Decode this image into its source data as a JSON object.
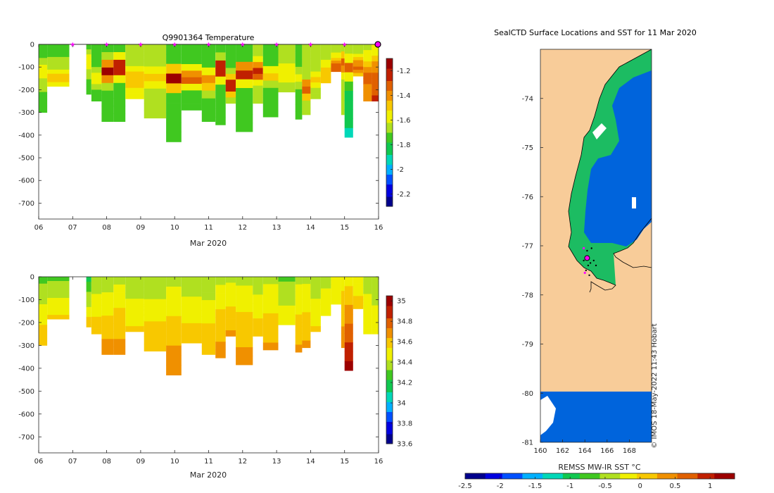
{
  "chart_data": [
    {
      "type": "heatmap",
      "title": "Q9901364  Temperature",
      "xlabel": "Mar 2020",
      "x_ticks": [
        "06",
        "07",
        "08",
        "09",
        "10",
        "11",
        "12",
        "13",
        "14",
        "15",
        "16"
      ],
      "xlim": [
        6,
        16
      ],
      "ylim": [
        -770,
        0
      ],
      "y_ticks": [
        0,
        -100,
        -200,
        -300,
        -400,
        -500,
        -600,
        -700
      ],
      "colorbar": {
        "ticks": [
          -1.2,
          -1.4,
          -1.6,
          -1.8,
          -2,
          -2.2
        ],
        "range": [
          -2.3,
          -1.1
        ]
      },
      "profile_markers_day": [
        7,
        8,
        9,
        10,
        11,
        12,
        13,
        14,
        15
      ],
      "last_profile_day": 16,
      "profiles": [
        {
          "start": 6.0,
          "end": 6.25,
          "depth": 300,
          "surface": -1.75,
          "bottom": -1.7,
          "warm_layer_depth": 130,
          "warm_layer_value": -1.55
        },
        {
          "start": 6.25,
          "end": 6.9,
          "depth": 185,
          "surface": -1.75,
          "bottom": -1.6,
          "warm_layer_depth": 150,
          "warm_layer_value": -1.5
        },
        {
          "start": 7.4,
          "end": 7.55,
          "depth": 220,
          "surface": -1.75,
          "bottom": -1.7,
          "warm_layer_depth": 80,
          "warm_layer_value": -1.55
        },
        {
          "start": 7.55,
          "end": 7.85,
          "depth": 250,
          "surface": -1.75,
          "bottom": -1.75,
          "warm_layer_depth": 150,
          "warm_layer_value": -1.55
        },
        {
          "start": 7.85,
          "end": 8.2,
          "depth": 340,
          "surface": -1.75,
          "bottom": -1.75,
          "warm_layer_depth": 120,
          "warm_layer_value": -1.15
        },
        {
          "start": 8.2,
          "end": 8.55,
          "depth": 340,
          "surface": -1.75,
          "bottom": -1.75,
          "warm_layer_depth": 100,
          "warm_layer_value": -1.15
        },
        {
          "start": 8.55,
          "end": 9.1,
          "depth": 240,
          "surface": -1.7,
          "bottom": -1.6,
          "warm_layer_depth": 150,
          "warm_layer_value": -1.45
        },
        {
          "start": 9.1,
          "end": 9.75,
          "depth": 325,
          "surface": -1.7,
          "bottom": -1.7,
          "warm_layer_depth": 140,
          "warm_layer_value": -1.5
        },
        {
          "start": 9.75,
          "end": 10.2,
          "depth": 430,
          "surface": -1.75,
          "bottom": -1.75,
          "warm_layer_depth": 150,
          "warm_layer_value": -1.15
        },
        {
          "start": 10.2,
          "end": 10.8,
          "depth": 290,
          "surface": -1.75,
          "bottom": -1.75,
          "warm_layer_depth": 150,
          "warm_layer_value": -1.3
        },
        {
          "start": 10.8,
          "end": 11.2,
          "depth": 340,
          "surface": -1.75,
          "bottom": -1.75,
          "warm_layer_depth": 160,
          "warm_layer_value": -1.4
        },
        {
          "start": 11.2,
          "end": 11.5,
          "depth": 355,
          "surface": -1.75,
          "bottom": -1.75,
          "warm_layer_depth": 110,
          "warm_layer_value": -1.15
        },
        {
          "start": 11.5,
          "end": 11.8,
          "depth": 260,
          "surface": -1.75,
          "bottom": -1.75,
          "warm_layer_depth": 180,
          "warm_layer_value": -1.2
        },
        {
          "start": 11.8,
          "end": 12.3,
          "depth": 385,
          "surface": -1.75,
          "bottom": -1.75,
          "warm_layer_depth": 130,
          "warm_layer_value": -1.2
        },
        {
          "start": 12.3,
          "end": 12.6,
          "depth": 260,
          "surface": -1.7,
          "bottom": -1.7,
          "warm_layer_depth": 120,
          "warm_layer_value": -1.25
        },
        {
          "start": 12.6,
          "end": 13.05,
          "depth": 320,
          "surface": -1.75,
          "bottom": -1.75,
          "warm_layer_depth": 140,
          "warm_layer_value": -1.5
        },
        {
          "start": 13.05,
          "end": 13.55,
          "depth": 210,
          "surface": -1.7,
          "bottom": -1.65,
          "warm_layer_depth": 120,
          "warm_layer_value": -1.55
        },
        {
          "start": 13.55,
          "end": 13.75,
          "depth": 330,
          "surface": -1.75,
          "bottom": -1.75,
          "warm_layer_depth": 150,
          "warm_layer_value": -1.6
        },
        {
          "start": 13.75,
          "end": 14.0,
          "depth": 310,
          "surface": -1.7,
          "bottom": -1.7,
          "warm_layer_depth": 200,
          "warm_layer_value": -1.3
        },
        {
          "start": 14.0,
          "end": 14.3,
          "depth": 240,
          "surface": -1.7,
          "bottom": -1.7,
          "warm_layer_depth": 150,
          "warm_layer_value": -1.5
        },
        {
          "start": 14.3,
          "end": 14.6,
          "depth": 170,
          "surface": -1.65,
          "bottom": -1.6,
          "warm_layer_depth": 130,
          "warm_layer_value": -1.45
        },
        {
          "start": 14.6,
          "end": 14.9,
          "depth": 120,
          "surface": -1.7,
          "bottom": -1.6,
          "warm_layer_depth": 100,
          "warm_layer_value": -1.3
        },
        {
          "start": 14.9,
          "end": 15.0,
          "depth": 310,
          "surface": -1.65,
          "bottom": -1.7,
          "warm_layer_depth": 90,
          "warm_layer_value": -1.3
        },
        {
          "start": 15.0,
          "end": 15.25,
          "depth": 410,
          "surface": -1.7,
          "bottom": -1.9,
          "warm_layer_depth": 100,
          "warm_layer_value": -1.35
        },
        {
          "start": 15.25,
          "end": 15.55,
          "depth": 140,
          "surface": -1.7,
          "bottom": -1.7,
          "warm_layer_depth": 100,
          "warm_layer_value": -1.35
        },
        {
          "start": 15.55,
          "end": 15.8,
          "depth": 250,
          "surface": -1.65,
          "bottom": -1.35,
          "warm_layer_depth": 140,
          "warm_layer_value": -1.3
        },
        {
          "start": 15.8,
          "end": 16.0,
          "depth": 250,
          "surface": -1.6,
          "bottom": -1.15,
          "warm_layer_depth": 200,
          "warm_layer_value": -1.3
        }
      ]
    },
    {
      "type": "heatmap",
      "title": "",
      "xlabel": "Mar 2020",
      "x_ticks": [
        "06",
        "07",
        "08",
        "09",
        "10",
        "11",
        "12",
        "13",
        "14",
        "15",
        "16"
      ],
      "xlim": [
        6,
        16
      ],
      "ylim": [
        -770,
        0
      ],
      "y_ticks": [
        0,
        -100,
        -200,
        -300,
        -400,
        -500,
        -600,
        -700
      ],
      "colorbar": {
        "ticks": [
          35,
          34.8,
          34.6,
          34.4,
          34.2,
          34,
          33.8,
          33.6
        ],
        "range": [
          33.6,
          35.05
        ]
      },
      "profiles": [
        {
          "start": 6.0,
          "end": 6.25,
          "depth": 300,
          "surface": 34.3,
          "bottom": 34.65
        },
        {
          "start": 6.25,
          "end": 6.9,
          "depth": 185,
          "surface": 34.3,
          "bottom": 34.55
        },
        {
          "start": 7.4,
          "end": 7.55,
          "depth": 220,
          "surface": 34.2,
          "bottom": 34.6
        },
        {
          "start": 7.55,
          "end": 7.85,
          "depth": 250,
          "surface": 34.35,
          "bottom": 34.6
        },
        {
          "start": 7.85,
          "end": 8.2,
          "depth": 340,
          "surface": 34.35,
          "bottom": 34.7
        },
        {
          "start": 8.2,
          "end": 8.55,
          "depth": 340,
          "surface": 34.4,
          "bottom": 34.7
        },
        {
          "start": 8.55,
          "end": 9.1,
          "depth": 240,
          "surface": 34.35,
          "bottom": 34.55
        },
        {
          "start": 9.1,
          "end": 9.75,
          "depth": 325,
          "surface": 34.35,
          "bottom": 34.65
        },
        {
          "start": 9.75,
          "end": 10.2,
          "depth": 430,
          "surface": 34.4,
          "bottom": 34.75
        },
        {
          "start": 10.2,
          "end": 10.8,
          "depth": 290,
          "surface": 34.35,
          "bottom": 34.6
        },
        {
          "start": 10.8,
          "end": 11.2,
          "depth": 340,
          "surface": 34.35,
          "bottom": 34.65
        },
        {
          "start": 11.2,
          "end": 11.5,
          "depth": 355,
          "surface": 34.4,
          "bottom": 34.7
        },
        {
          "start": 11.5,
          "end": 11.8,
          "depth": 260,
          "surface": 34.4,
          "bottom": 34.65
        },
        {
          "start": 11.8,
          "end": 12.3,
          "depth": 385,
          "surface": 34.4,
          "bottom": 34.7
        },
        {
          "start": 12.3,
          "end": 12.6,
          "depth": 260,
          "surface": 34.35,
          "bottom": 34.6
        },
        {
          "start": 12.6,
          "end": 13.05,
          "depth": 320,
          "surface": 34.4,
          "bottom": 34.65
        },
        {
          "start": 13.05,
          "end": 13.55,
          "depth": 210,
          "surface": 34.3,
          "bottom": 34.5
        },
        {
          "start": 13.55,
          "end": 13.75,
          "depth": 330,
          "surface": 34.4,
          "bottom": 34.65
        },
        {
          "start": 13.75,
          "end": 14.0,
          "depth": 310,
          "surface": 34.4,
          "bottom": 34.65
        },
        {
          "start": 14.0,
          "end": 14.3,
          "depth": 240,
          "surface": 34.35,
          "bottom": 34.55
        },
        {
          "start": 14.3,
          "end": 14.6,
          "depth": 170,
          "surface": 34.4,
          "bottom": 34.5
        },
        {
          "start": 14.6,
          "end": 14.9,
          "depth": 120,
          "surface": 34.45,
          "bottom": 34.5
        },
        {
          "start": 14.9,
          "end": 15.0,
          "depth": 310,
          "surface": 34.5,
          "bottom": 34.7
        },
        {
          "start": 15.0,
          "end": 15.25,
          "depth": 410,
          "surface": 34.5,
          "bottom": 35.0
        },
        {
          "start": 15.25,
          "end": 15.55,
          "depth": 140,
          "surface": 34.5,
          "bottom": 34.55
        },
        {
          "start": 15.55,
          "end": 15.8,
          "depth": 250,
          "surface": 34.4,
          "bottom": 34.5
        },
        {
          "start": 15.8,
          "end": 16.0,
          "depth": 250,
          "surface": 34.35,
          "bottom": 34.5
        }
      ]
    },
    {
      "type": "heatmap",
      "title": "SealCTD Surface Locations and SST for 11 Mar 2020",
      "xlabel": "",
      "ylabel": "",
      "x_ticks": [
        "160",
        "162",
        "164",
        "166",
        "168"
      ],
      "y_ticks": [
        "-74",
        "-75",
        "-76",
        "-77",
        "-78",
        "-79",
        "-80",
        "-81"
      ],
      "xlim": [
        160,
        170
      ],
      "ylim": [
        -81,
        -73
      ],
      "colorbar_label": "REMSS MW-IR SST °C",
      "colorbar": {
        "ticks": [
          "-2.5",
          "-2",
          "-1.5",
          "-1",
          "-0.5",
          "0",
          "0.5",
          "1"
        ],
        "range": [
          -2.5,
          1.35
        ]
      },
      "land_color": "#f8cc99",
      "sea_color_main": "#0064dc",
      "sea_color_shelf": "#1cbc62",
      "last_location": {
        "lon": 164.2,
        "lat": -77.25
      },
      "watermark": "© IMOS 18-May-2022 11:43 Hobart"
    }
  ],
  "colors": {
    "colormap": [
      "#00008c",
      "#0000e0",
      "#0050ff",
      "#00b0ff",
      "#00d8b8",
      "#10c850",
      "#40c820",
      "#b0e020",
      "#f0f000",
      "#f8c800",
      "#f09000",
      "#e06000",
      "#c02000",
      "#9c0000"
    ],
    "marker": "#ff00ff"
  }
}
